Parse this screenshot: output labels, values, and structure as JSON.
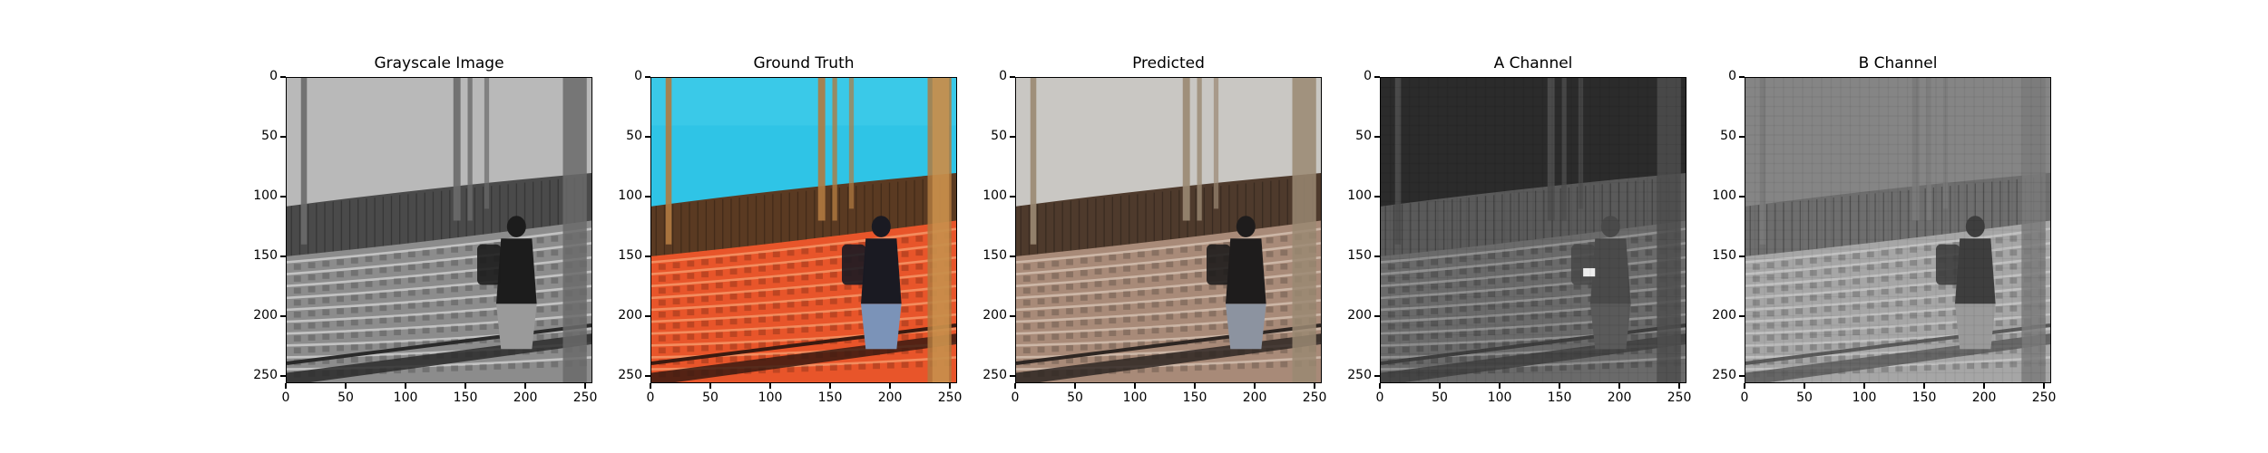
{
  "figure": {
    "panels": [
      {
        "id": "grayscale",
        "title": "Grayscale Image",
        "style": "gray"
      },
      {
        "id": "ground-truth",
        "title": "Ground Truth",
        "style": "color"
      },
      {
        "id": "predicted",
        "title": "Predicted",
        "style": "muted"
      },
      {
        "id": "a-channel",
        "title": "A Channel",
        "style": "achannel"
      },
      {
        "id": "b-channel",
        "title": "B Channel",
        "style": "bchannel"
      }
    ],
    "x_ticks": [
      "0",
      "50",
      "100",
      "150",
      "200",
      "250"
    ],
    "y_ticks": [
      "0",
      "50",
      "100",
      "150",
      "200",
      "250"
    ],
    "x_tick_values": [
      0,
      50,
      100,
      150,
      200,
      250
    ],
    "y_tick_values": [
      0,
      50,
      100,
      150,
      200,
      250
    ],
    "image_extent": [
      0,
      256
    ]
  },
  "colors": {
    "sky_gt": "#2fc4e6",
    "seats_gt": "#e8552a",
    "sky_pred": "#c9c7c3",
    "seats_pred": "#a88a78"
  }
}
